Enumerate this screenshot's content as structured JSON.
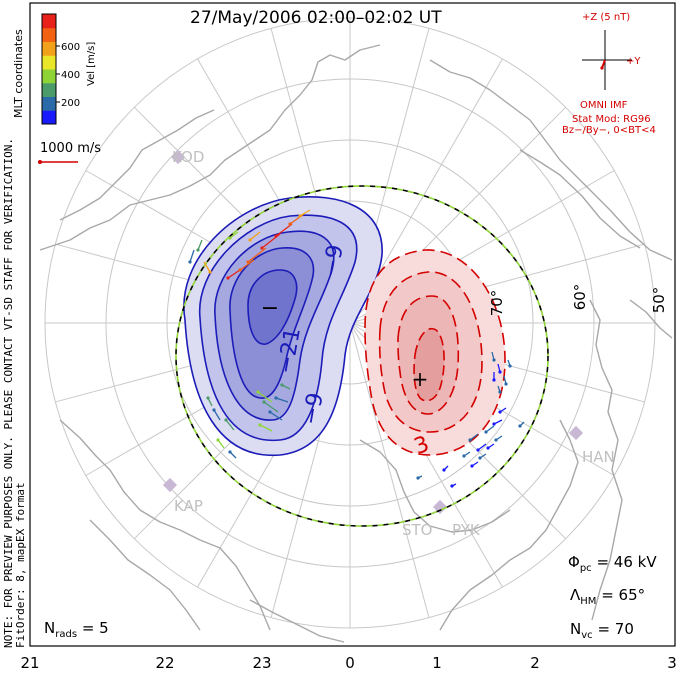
{
  "title": "27/May/2006 02:00–02:02 UT",
  "side_text": {
    "note": "NOTE: FOR PREVIEW PURPOSES ONLY. PLEASE CONTACT VT-SD STAFF FOR VERIFICATION.",
    "fitorder": "FitOrder: 8, mapEX format",
    "coords": "MLT coordinates"
  },
  "colorbar": {
    "label": "Vel [m/s]",
    "ticks": [
      "600",
      "400",
      "200"
    ],
    "colors": [
      "#1a1aff",
      "#2a6aa8",
      "#4a9a6a",
      "#8fd436",
      "#e9e62a",
      "#f2a21a",
      "#f26212",
      "#e8221a"
    ]
  },
  "ref_vector": {
    "label": "1000 m/s",
    "color": "#d40000"
  },
  "imf": {
    "z_label": "+Z (5 nT)",
    "y_label": "+Y",
    "omni": "OMNI IMF",
    "model": "Stat Mod: RG96",
    "cond": "Bz−/By−, 0<BT<4"
  },
  "stations": [
    {
      "name": "KOD"
    },
    {
      "name": "KAP"
    },
    {
      "name": "STO"
    },
    {
      "name": "PYK"
    },
    {
      "name": "HAN"
    }
  ],
  "stats": {
    "pc_symbol": "Φ",
    "pc_sub": "pc",
    "pc_value": "= 46 kV",
    "hm_symbol": "Λ",
    "hm_sub": "HM",
    "hm_value": "= 65°",
    "vc_symbol": "N",
    "vc_sub": "vc",
    "vc_value": "= 70",
    "rads_symbol": "N",
    "rads_sub": "rads",
    "rads_value": "= 5"
  },
  "chart_data": {
    "type": "map",
    "projection": "polar, magnetic local time",
    "mlt_ticks": [
      "21",
      "22",
      "23",
      "0",
      "1",
      "2",
      "3"
    ],
    "lat_labels": [
      "70°",
      "60°",
      "50°"
    ],
    "lat_circles": [
      80,
      70,
      60,
      50,
      40
    ],
    "heppner_maynard_boundary_lat": 65,
    "potential_contours": {
      "negative_labels": [
        "−9",
        "−21",
        "−9"
      ],
      "positive_labels": [
        "3"
      ],
      "min_marker": "−",
      "max_marker": "+"
    },
    "cross_polar_cap_potential_kV": 46,
    "n_vectors": 70,
    "n_radars": 5
  }
}
